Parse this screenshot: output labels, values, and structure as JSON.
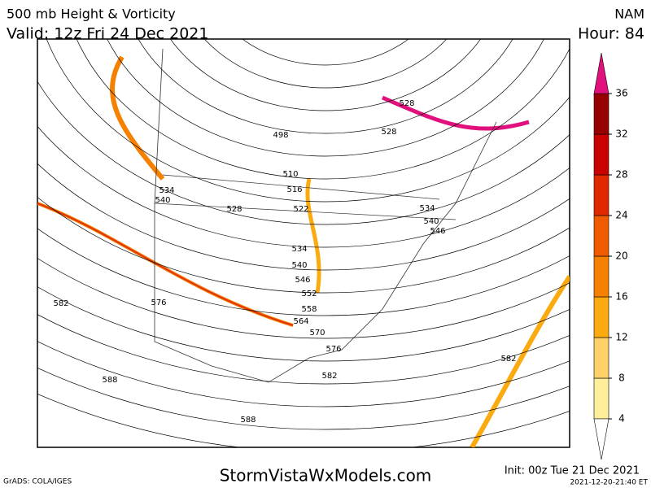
{
  "header": {
    "title": "500 mb Height & Vorticity",
    "valid": "Valid: 12z Fri 24 Dec 2021",
    "model": "NAM",
    "hour": "Hour: 84"
  },
  "contour_labels": [
    528,
    498,
    510,
    516,
    522,
    534,
    540,
    528,
    534,
    540,
    546,
    552,
    558,
    564,
    570,
    576,
    576,
    582,
    582,
    582,
    588,
    588,
    528,
    534,
    540,
    546
  ],
  "colorbar": {
    "ticks": [
      4,
      8,
      12,
      16,
      20,
      24,
      28,
      32,
      36
    ],
    "colors": [
      "#ffee9a",
      "#fdd068",
      "#fbaa10",
      "#f68000",
      "#f05a00",
      "#e02800",
      "#c80000",
      "#960000"
    ],
    "over_color": "#e0107c"
  },
  "footer": {
    "credit": "GrADS: COLA/IGES",
    "site": "StormVistaWxModels.com",
    "init": "Init: 00z Tue 21 Dec 2021",
    "timestamp": "2021-12-20-21:40 ET"
  }
}
